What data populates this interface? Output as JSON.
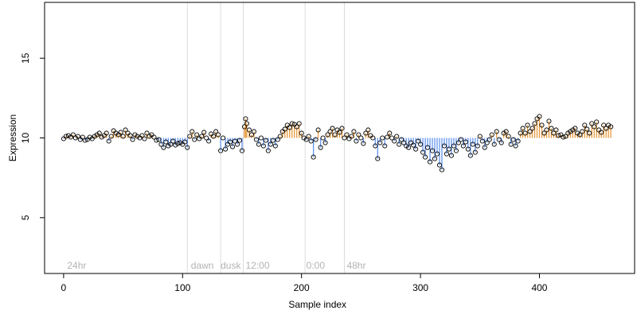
{
  "chart_data": {
    "type": "scatter",
    "xlabel": "Sample index",
    "ylabel": "Expression",
    "xlim": [
      -16,
      480
    ],
    "ylim": [
      1.5,
      18.5
    ],
    "x_ticks": [
      0,
      100,
      200,
      300,
      400
    ],
    "y_ticks": [
      5,
      10,
      15
    ],
    "x_tick_labels": [
      "0",
      "100",
      "200",
      "300",
      "400"
    ],
    "y_tick_labels": [
      "5",
      "10",
      "15"
    ],
    "baseline": 10,
    "grid": false,
    "vlines": [
      104,
      132,
      151,
      203,
      236
    ],
    "annotations": [
      {
        "x": 3,
        "y": 2,
        "text": "24hr"
      },
      {
        "x": 107,
        "y": 2,
        "text": "dawn"
      },
      {
        "x": 132,
        "y": 2,
        "text": "dusk"
      },
      {
        "x": 153,
        "y": 2,
        "text": "12:00"
      },
      {
        "x": 204,
        "y": 2,
        "text": "0:00"
      },
      {
        "x": 238,
        "y": 2,
        "text": "48hr"
      }
    ],
    "colors": {
      "above": "#e69a3c",
      "below": "#6495ed",
      "point": "#000000",
      "vline": "#dcdcdc",
      "annot": "#b3b3b3"
    },
    "points": [
      [
        0,
        9.95
      ],
      [
        2,
        10.1
      ],
      [
        4,
        10.15
      ],
      [
        6,
        10.05
      ],
      [
        8,
        10.2
      ],
      [
        10,
        10.0
      ],
      [
        12,
        10.1
      ],
      [
        14,
        9.9
      ],
      [
        16,
        10.05
      ],
      [
        18,
        9.85
      ],
      [
        20,
        9.9
      ],
      [
        22,
        10.05
      ],
      [
        24,
        9.95
      ],
      [
        26,
        10.1
      ],
      [
        28,
        10.2
      ],
      [
        30,
        10.3
      ],
      [
        32,
        10.05
      ],
      [
        34,
        10.15
      ],
      [
        36,
        10.3
      ],
      [
        38,
        9.8
      ],
      [
        40,
        10.1
      ],
      [
        42,
        10.45
      ],
      [
        44,
        10.3
      ],
      [
        46,
        10.2
      ],
      [
        48,
        10.35
      ],
      [
        50,
        10.1
      ],
      [
        52,
        10.5
      ],
      [
        54,
        10.3
      ],
      [
        56,
        10.15
      ],
      [
        58,
        9.9
      ],
      [
        60,
        10.2
      ],
      [
        62,
        10.1
      ],
      [
        64,
        10.0
      ],
      [
        66,
        10.15
      ],
      [
        68,
        9.95
      ],
      [
        70,
        10.3
      ],
      [
        72,
        10.1
      ],
      [
        74,
        10.2
      ],
      [
        76,
        10.05
      ],
      [
        78,
        9.85
      ],
      [
        80,
        9.9
      ],
      [
        82,
        9.6
      ],
      [
        84,
        9.4
      ],
      [
        86,
        9.75
      ],
      [
        88,
        9.5
      ],
      [
        90,
        9.6
      ],
      [
        92,
        9.8
      ],
      [
        94,
        9.55
      ],
      [
        96,
        9.65
      ],
      [
        98,
        9.7
      ],
      [
        100,
        9.6
      ],
      [
        102,
        9.75
      ],
      [
        104,
        9.4
      ],
      [
        106,
        10.1
      ],
      [
        108,
        10.4
      ],
      [
        110,
        9.9
      ],
      [
        112,
        10.2
      ],
      [
        114,
        9.95
      ],
      [
        116,
        10.1
      ],
      [
        118,
        10.35
      ],
      [
        120,
        10.0
      ],
      [
        122,
        9.8
      ],
      [
        124,
        10.25
      ],
      [
        126,
        10.1
      ],
      [
        128,
        10.4
      ],
      [
        130,
        10.2
      ],
      [
        132,
        9.2
      ],
      [
        134,
        10.0
      ],
      [
        136,
        9.3
      ],
      [
        138,
        9.6
      ],
      [
        140,
        9.75
      ],
      [
        142,
        9.45
      ],
      [
        144,
        9.8
      ],
      [
        146,
        9.6
      ],
      [
        148,
        9.85
      ],
      [
        150,
        9.2
      ],
      [
        152,
        10.7
      ],
      [
        153,
        11.2
      ],
      [
        154,
        10.9
      ],
      [
        156,
        10.5
      ],
      [
        158,
        10.2
      ],
      [
        160,
        10.4
      ],
      [
        162,
        9.9
      ],
      [
        164,
        9.6
      ],
      [
        166,
        10.0
      ],
      [
        168,
        9.5
      ],
      [
        170,
        9.85
      ],
      [
        172,
        9.2
      ],
      [
        174,
        9.6
      ],
      [
        176,
        9.85
      ],
      [
        178,
        9.5
      ],
      [
        180,
        9.9
      ],
      [
        182,
        10.1
      ],
      [
        184,
        10.4
      ],
      [
        186,
        10.55
      ],
      [
        188,
        10.8
      ],
      [
        190,
        10.65
      ],
      [
        192,
        10.9
      ],
      [
        194,
        10.85
      ],
      [
        196,
        10.7
      ],
      [
        198,
        10.9
      ],
      [
        200,
        10.3
      ],
      [
        202,
        10.0
      ],
      [
        204,
        9.9
      ],
      [
        206,
        10.1
      ],
      [
        208,
        9.8
      ],
      [
        210,
        8.8
      ],
      [
        212,
        9.9
      ],
      [
        214,
        10.5
      ],
      [
        216,
        9.4
      ],
      [
        218,
        10.0
      ],
      [
        220,
        9.7
      ],
      [
        222,
        10.2
      ],
      [
        224,
        10.4
      ],
      [
        226,
        10.6
      ],
      [
        228,
        10.2
      ],
      [
        230,
        10.5
      ],
      [
        232,
        10.35
      ],
      [
        234,
        10.6
      ],
      [
        236,
        10.0
      ],
      [
        238,
        10.2
      ],
      [
        240,
        9.95
      ],
      [
        242,
        10.1
      ],
      [
        244,
        10.4
      ],
      [
        246,
        9.8
      ],
      [
        248,
        10.2
      ],
      [
        250,
        10.0
      ],
      [
        252,
        9.65
      ],
      [
        254,
        10.3
      ],
      [
        256,
        10.5
      ],
      [
        258,
        10.15
      ],
      [
        260,
        10.0
      ],
      [
        262,
        9.5
      ],
      [
        264,
        8.7
      ],
      [
        266,
        9.7
      ],
      [
        268,
        10.0
      ],
      [
        270,
        9.5
      ],
      [
        272,
        10.05
      ],
      [
        274,
        10.3
      ],
      [
        276,
        10.0
      ],
      [
        278,
        9.8
      ],
      [
        280,
        10.1
      ],
      [
        282,
        9.6
      ],
      [
        284,
        9.9
      ],
      [
        286,
        9.7
      ],
      [
        288,
        9.5
      ],
      [
        290,
        9.4
      ],
      [
        292,
        9.7
      ],
      [
        294,
        9.55
      ],
      [
        296,
        9.3
      ],
      [
        298,
        9.8
      ],
      [
        300,
        9.6
      ],
      [
        302,
        9.1
      ],
      [
        304,
        8.8
      ],
      [
        306,
        9.4
      ],
      [
        308,
        8.5
      ],
      [
        310,
        9.2
      ],
      [
        312,
        8.7
      ],
      [
        314,
        9.0
      ],
      [
        316,
        8.3
      ],
      [
        318,
        8.0
      ],
      [
        320,
        9.5
      ],
      [
        322,
        9.0
      ],
      [
        324,
        9.3
      ],
      [
        326,
        8.9
      ],
      [
        328,
        9.5
      ],
      [
        330,
        9.2
      ],
      [
        332,
        9.7
      ],
      [
        334,
        9.9
      ],
      [
        336,
        9.5
      ],
      [
        338,
        9.75
      ],
      [
        340,
        9.3
      ],
      [
        342,
        8.9
      ],
      [
        344,
        9.6
      ],
      [
        346,
        9.1
      ],
      [
        348,
        9.5
      ],
      [
        350,
        10.1
      ],
      [
        352,
        9.8
      ],
      [
        354,
        9.4
      ],
      [
        356,
        9.7
      ],
      [
        358,
        9.9
      ],
      [
        360,
        10.2
      ],
      [
        362,
        9.6
      ],
      [
        364,
        10.4
      ],
      [
        366,
        9.9
      ],
      [
        368,
        9.7
      ],
      [
        370,
        10.3
      ],
      [
        372,
        10.4
      ],
      [
        374,
        10.1
      ],
      [
        376,
        9.6
      ],
      [
        378,
        9.9
      ],
      [
        380,
        9.5
      ],
      [
        382,
        9.8
      ],
      [
        384,
        10.3
      ],
      [
        386,
        10.6
      ],
      [
        388,
        10.3
      ],
      [
        390,
        10.8
      ],
      [
        392,
        10.4
      ],
      [
        394,
        10.6
      ],
      [
        396,
        10.9
      ],
      [
        398,
        11.2
      ],
      [
        400,
        11.35
      ],
      [
        402,
        10.8
      ],
      [
        404,
        10.3
      ],
      [
        406,
        10.5
      ],
      [
        408,
        11.05
      ],
      [
        410,
        10.6
      ],
      [
        412,
        10.3
      ],
      [
        414,
        10.5
      ],
      [
        416,
        10.15
      ],
      [
        418,
        10.2
      ],
      [
        420,
        10.05
      ],
      [
        422,
        10.1
      ],
      [
        424,
        10.3
      ],
      [
        426,
        10.4
      ],
      [
        428,
        10.5
      ],
      [
        430,
        10.6
      ],
      [
        432,
        10.3
      ],
      [
        434,
        10.2
      ],
      [
        436,
        10.4
      ],
      [
        438,
        10.8
      ],
      [
        440,
        10.55
      ],
      [
        442,
        10.3
      ],
      [
        444,
        10.9
      ],
      [
        446,
        10.7
      ],
      [
        448,
        11.0
      ],
      [
        450,
        10.5
      ],
      [
        452,
        10.35
      ],
      [
        454,
        10.8
      ],
      [
        456,
        10.6
      ],
      [
        458,
        10.8
      ],
      [
        460,
        10.7
      ]
    ]
  }
}
